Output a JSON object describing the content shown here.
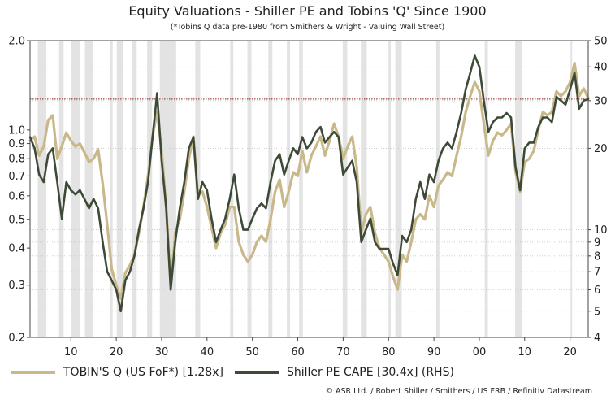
{
  "header": {
    "title": "Equity Valuations - Shiller PE and Tobins 'Q' Since 1900",
    "subtitle": "(*Tobins Q data pre-1980 from Smithers & Wright - Valuing Wall Street)"
  },
  "legend": {
    "tobin_label": "TOBIN'S Q (US FoF*) [1.28x]",
    "cape_label": "Shiller PE CAPE [30.4x] (RHS)"
  },
  "footer": {
    "source": "© ASR Ltd. / Robert Shiller / Smithers / US FRB / Refinitiv Datastream"
  },
  "colors": {
    "tobin": "#c8b88a",
    "cape": "#3d4a38",
    "recession": "#e3e3e3",
    "reference_line": "#8b1a1a"
  },
  "chart_data": {
    "type": "line",
    "title": "Equity Valuations - Shiller PE and Tobins 'Q' Since 1900",
    "x_range": [
      1901,
      2024
    ],
    "x_ticks": [
      1910,
      1920,
      1930,
      1940,
      1950,
      1960,
      1970,
      1980,
      1990,
      2000,
      2010,
      2020
    ],
    "x_tick_labels": [
      "10",
      "20",
      "30",
      "40",
      "50",
      "60",
      "70",
      "80",
      "90",
      "00",
      "10",
      "20"
    ],
    "y_left": {
      "scale": "log",
      "range": [
        0.2,
        2.0
      ],
      "ticks": [
        0.2,
        0.3,
        0.4,
        0.5,
        0.6,
        0.7,
        0.8,
        0.9,
        1.0,
        2.0
      ],
      "tick_labels": [
        "0.2",
        "0.3",
        "0.4",
        "0.5",
        "0.6",
        "0.7",
        "0.8",
        "0.9",
        "1.0",
        "2.0"
      ]
    },
    "y_right": {
      "scale": "log",
      "range": [
        4,
        50
      ],
      "ticks": [
        4,
        5,
        6,
        7,
        8,
        9,
        10,
        20,
        30,
        40,
        50
      ],
      "tick_labels": [
        "4",
        "5",
        "6",
        "7",
        "8",
        "9",
        "10",
        "20",
        "30",
        "40",
        "50"
      ]
    },
    "reference_line": {
      "axis": "right",
      "value": 30.4
    },
    "recessions": [
      [
        1902.7,
        1904.6
      ],
      [
        1907.4,
        1908.4
      ],
      [
        1910.1,
        1912.0
      ],
      [
        1913.1,
        1914.9
      ],
      [
        1918.7,
        1919.2
      ],
      [
        1920.1,
        1921.5
      ],
      [
        1923.4,
        1924.5
      ],
      [
        1926.8,
        1927.9
      ],
      [
        1929.6,
        1933.2
      ],
      [
        1937.4,
        1938.5
      ],
      [
        1945.1,
        1945.8
      ],
      [
        1948.9,
        1949.8
      ],
      [
        1953.5,
        1954.4
      ],
      [
        1957.6,
        1958.3
      ],
      [
        1960.3,
        1961.1
      ],
      [
        1969.9,
        1970.9
      ],
      [
        1973.9,
        1975.2
      ],
      [
        1980.0,
        1980.5
      ],
      [
        1981.5,
        1982.9
      ],
      [
        1990.5,
        1991.2
      ],
      [
        2001.2,
        2001.9
      ],
      [
        2007.9,
        2009.5
      ],
      [
        2020.1,
        2020.4
      ]
    ],
    "series": [
      {
        "name": "TOBIN'S Q (US FoF*) [1.28x]",
        "axis": "left",
        "points": [
          [
            1901,
            0.92
          ],
          [
            1902,
            0.95
          ],
          [
            1903,
            0.82
          ],
          [
            1904,
            0.88
          ],
          [
            1905,
            1.08
          ],
          [
            1906,
            1.12
          ],
          [
            1907,
            0.8
          ],
          [
            1908,
            0.88
          ],
          [
            1909,
            0.98
          ],
          [
            1910,
            0.92
          ],
          [
            1911,
            0.88
          ],
          [
            1912,
            0.9
          ],
          [
            1913,
            0.84
          ],
          [
            1914,
            0.78
          ],
          [
            1915,
            0.8
          ],
          [
            1916,
            0.86
          ],
          [
            1917,
            0.66
          ],
          [
            1918,
            0.48
          ],
          [
            1919,
            0.34
          ],
          [
            1920,
            0.3
          ],
          [
            1921,
            0.27
          ],
          [
            1922,
            0.33
          ],
          [
            1923,
            0.35
          ],
          [
            1924,
            0.38
          ],
          [
            1925,
            0.45
          ],
          [
            1926,
            0.55
          ],
          [
            1927,
            0.7
          ],
          [
            1928,
            0.95
          ],
          [
            1929,
            1.15
          ],
          [
            1930,
            0.85
          ],
          [
            1931,
            0.55
          ],
          [
            1932,
            0.3
          ],
          [
            1933,
            0.45
          ],
          [
            1934,
            0.5
          ],
          [
            1935,
            0.62
          ],
          [
            1936,
            0.8
          ],
          [
            1937,
            0.95
          ],
          [
            1938,
            0.6
          ],
          [
            1939,
            0.62
          ],
          [
            1940,
            0.55
          ],
          [
            1941,
            0.47
          ],
          [
            1942,
            0.4
          ],
          [
            1943,
            0.45
          ],
          [
            1944,
            0.48
          ],
          [
            1945,
            0.55
          ],
          [
            1946,
            0.55
          ],
          [
            1947,
            0.42
          ],
          [
            1948,
            0.38
          ],
          [
            1949,
            0.36
          ],
          [
            1950,
            0.38
          ],
          [
            1951,
            0.42
          ],
          [
            1952,
            0.44
          ],
          [
            1953,
            0.42
          ],
          [
            1954,
            0.5
          ],
          [
            1955,
            0.62
          ],
          [
            1956,
            0.68
          ],
          [
            1957,
            0.55
          ],
          [
            1958,
            0.62
          ],
          [
            1959,
            0.72
          ],
          [
            1960,
            0.7
          ],
          [
            1961,
            0.85
          ],
          [
            1962,
            0.72
          ],
          [
            1963,
            0.82
          ],
          [
            1964,
            0.88
          ],
          [
            1965,
            0.95
          ],
          [
            1966,
            0.82
          ],
          [
            1967,
            0.92
          ],
          [
            1968,
            1.05
          ],
          [
            1969,
            0.95
          ],
          [
            1970,
            0.8
          ],
          [
            1971,
            0.88
          ],
          [
            1972,
            0.95
          ],
          [
            1973,
            0.75
          ],
          [
            1974,
            0.45
          ],
          [
            1975,
            0.52
          ],
          [
            1976,
            0.55
          ],
          [
            1977,
            0.45
          ],
          [
            1978,
            0.4
          ],
          [
            1979,
            0.38
          ],
          [
            1980,
            0.36
          ],
          [
            1981,
            0.32
          ],
          [
            1982,
            0.29
          ],
          [
            1983,
            0.38
          ],
          [
            1984,
            0.36
          ],
          [
            1985,
            0.42
          ],
          [
            1986,
            0.5
          ],
          [
            1987,
            0.52
          ],
          [
            1988,
            0.5
          ],
          [
            1989,
            0.6
          ],
          [
            1990,
            0.55
          ],
          [
            1991,
            0.65
          ],
          [
            1992,
            0.68
          ],
          [
            1993,
            0.72
          ],
          [
            1994,
            0.7
          ],
          [
            1995,
            0.82
          ],
          [
            1996,
            0.95
          ],
          [
            1997,
            1.15
          ],
          [
            1998,
            1.3
          ],
          [
            1999,
            1.45
          ],
          [
            2000,
            1.35
          ],
          [
            2001,
            1.05
          ],
          [
            2002,
            0.82
          ],
          [
            2003,
            0.92
          ],
          [
            2004,
            0.98
          ],
          [
            2005,
            0.96
          ],
          [
            2006,
            1.0
          ],
          [
            2007,
            1.05
          ],
          [
            2008,
            0.72
          ],
          [
            2009,
            0.62
          ],
          [
            2010,
            0.78
          ],
          [
            2011,
            0.8
          ],
          [
            2012,
            0.85
          ],
          [
            2013,
            1.0
          ],
          [
            2014,
            1.15
          ],
          [
            2015,
            1.12
          ],
          [
            2016,
            1.15
          ],
          [
            2017,
            1.35
          ],
          [
            2018,
            1.3
          ],
          [
            2019,
            1.35
          ],
          [
            2020,
            1.45
          ],
          [
            2021,
            1.68
          ],
          [
            2022,
            1.3
          ],
          [
            2023,
            1.38
          ],
          [
            2024,
            1.28
          ]
        ]
      },
      {
        "name": "Shiller PE CAPE [30.4x] (RHS)",
        "axis": "right",
        "points": [
          [
            1901,
            22
          ],
          [
            1902,
            20
          ],
          [
            1903,
            16
          ],
          [
            1904,
            15
          ],
          [
            1905,
            19
          ],
          [
            1906,
            20
          ],
          [
            1907,
            15
          ],
          [
            1908,
            11
          ],
          [
            1909,
            15
          ],
          [
            1910,
            14
          ],
          [
            1911,
            13.5
          ],
          [
            1912,
            14
          ],
          [
            1913,
            13
          ],
          [
            1914,
            12
          ],
          [
            1915,
            13
          ],
          [
            1916,
            12
          ],
          [
            1917,
            9
          ],
          [
            1918,
            7
          ],
          [
            1919,
            6.5
          ],
          [
            1920,
            6
          ],
          [
            1921,
            5.0
          ],
          [
            1922,
            6.5
          ],
          [
            1923,
            7
          ],
          [
            1924,
            8
          ],
          [
            1925,
            10
          ],
          [
            1926,
            12
          ],
          [
            1927,
            15
          ],
          [
            1928,
            22
          ],
          [
            1929,
            32
          ],
          [
            1930,
            18
          ],
          [
            1931,
            12
          ],
          [
            1932,
            6.0
          ],
          [
            1933,
            9
          ],
          [
            1934,
            12
          ],
          [
            1935,
            15
          ],
          [
            1936,
            20
          ],
          [
            1937,
            22
          ],
          [
            1938,
            13
          ],
          [
            1939,
            15
          ],
          [
            1940,
            14
          ],
          [
            1941,
            11
          ],
          [
            1942,
            9
          ],
          [
            1943,
            10
          ],
          [
            1944,
            11
          ],
          [
            1945,
            13
          ],
          [
            1946,
            16
          ],
          [
            1947,
            12
          ],
          [
            1948,
            10
          ],
          [
            1949,
            10
          ],
          [
            1950,
            11
          ],
          [
            1951,
            12
          ],
          [
            1952,
            12.5
          ],
          [
            1953,
            12
          ],
          [
            1954,
            15
          ],
          [
            1955,
            18
          ],
          [
            1956,
            19
          ],
          [
            1957,
            16
          ],
          [
            1958,
            18
          ],
          [
            1959,
            20
          ],
          [
            1960,
            19
          ],
          [
            1961,
            22
          ],
          [
            1962,
            20
          ],
          [
            1963,
            21
          ],
          [
            1964,
            23
          ],
          [
            1965,
            24
          ],
          [
            1966,
            21
          ],
          [
            1967,
            22
          ],
          [
            1968,
            23
          ],
          [
            1969,
            22
          ],
          [
            1970,
            16
          ],
          [
            1971,
            17
          ],
          [
            1972,
            18
          ],
          [
            1973,
            15
          ],
          [
            1974,
            9
          ],
          [
            1975,
            10
          ],
          [
            1976,
            11
          ],
          [
            1977,
            9
          ],
          [
            1978,
            8.5
          ],
          [
            1979,
            8.5
          ],
          [
            1980,
            8.5
          ],
          [
            1981,
            7.5
          ],
          [
            1982,
            6.8
          ],
          [
            1983,
            9.5
          ],
          [
            1984,
            9
          ],
          [
            1985,
            10
          ],
          [
            1986,
            13
          ],
          [
            1987,
            15
          ],
          [
            1988,
            13
          ],
          [
            1989,
            16
          ],
          [
            1990,
            15
          ],
          [
            1991,
            18
          ],
          [
            1992,
            20
          ],
          [
            1993,
            21
          ],
          [
            1994,
            20
          ],
          [
            1995,
            23
          ],
          [
            1996,
            27
          ],
          [
            1997,
            33
          ],
          [
            1998,
            38
          ],
          [
            1999,
            44
          ],
          [
            2000,
            40
          ],
          [
            2001,
            30
          ],
          [
            2002,
            23
          ],
          [
            2003,
            25
          ],
          [
            2004,
            26
          ],
          [
            2005,
            26
          ],
          [
            2006,
            27
          ],
          [
            2007,
            26
          ],
          [
            2008,
            17
          ],
          [
            2009,
            14
          ],
          [
            2010,
            20
          ],
          [
            2011,
            21
          ],
          [
            2012,
            21
          ],
          [
            2013,
            24
          ],
          [
            2014,
            26
          ],
          [
            2015,
            26
          ],
          [
            2016,
            25
          ],
          [
            2017,
            31
          ],
          [
            2018,
            30
          ],
          [
            2019,
            29
          ],
          [
            2020,
            33
          ],
          [
            2021,
            38
          ],
          [
            2022,
            28
          ],
          [
            2023,
            30
          ],
          [
            2024,
            30.4
          ]
        ]
      }
    ]
  }
}
